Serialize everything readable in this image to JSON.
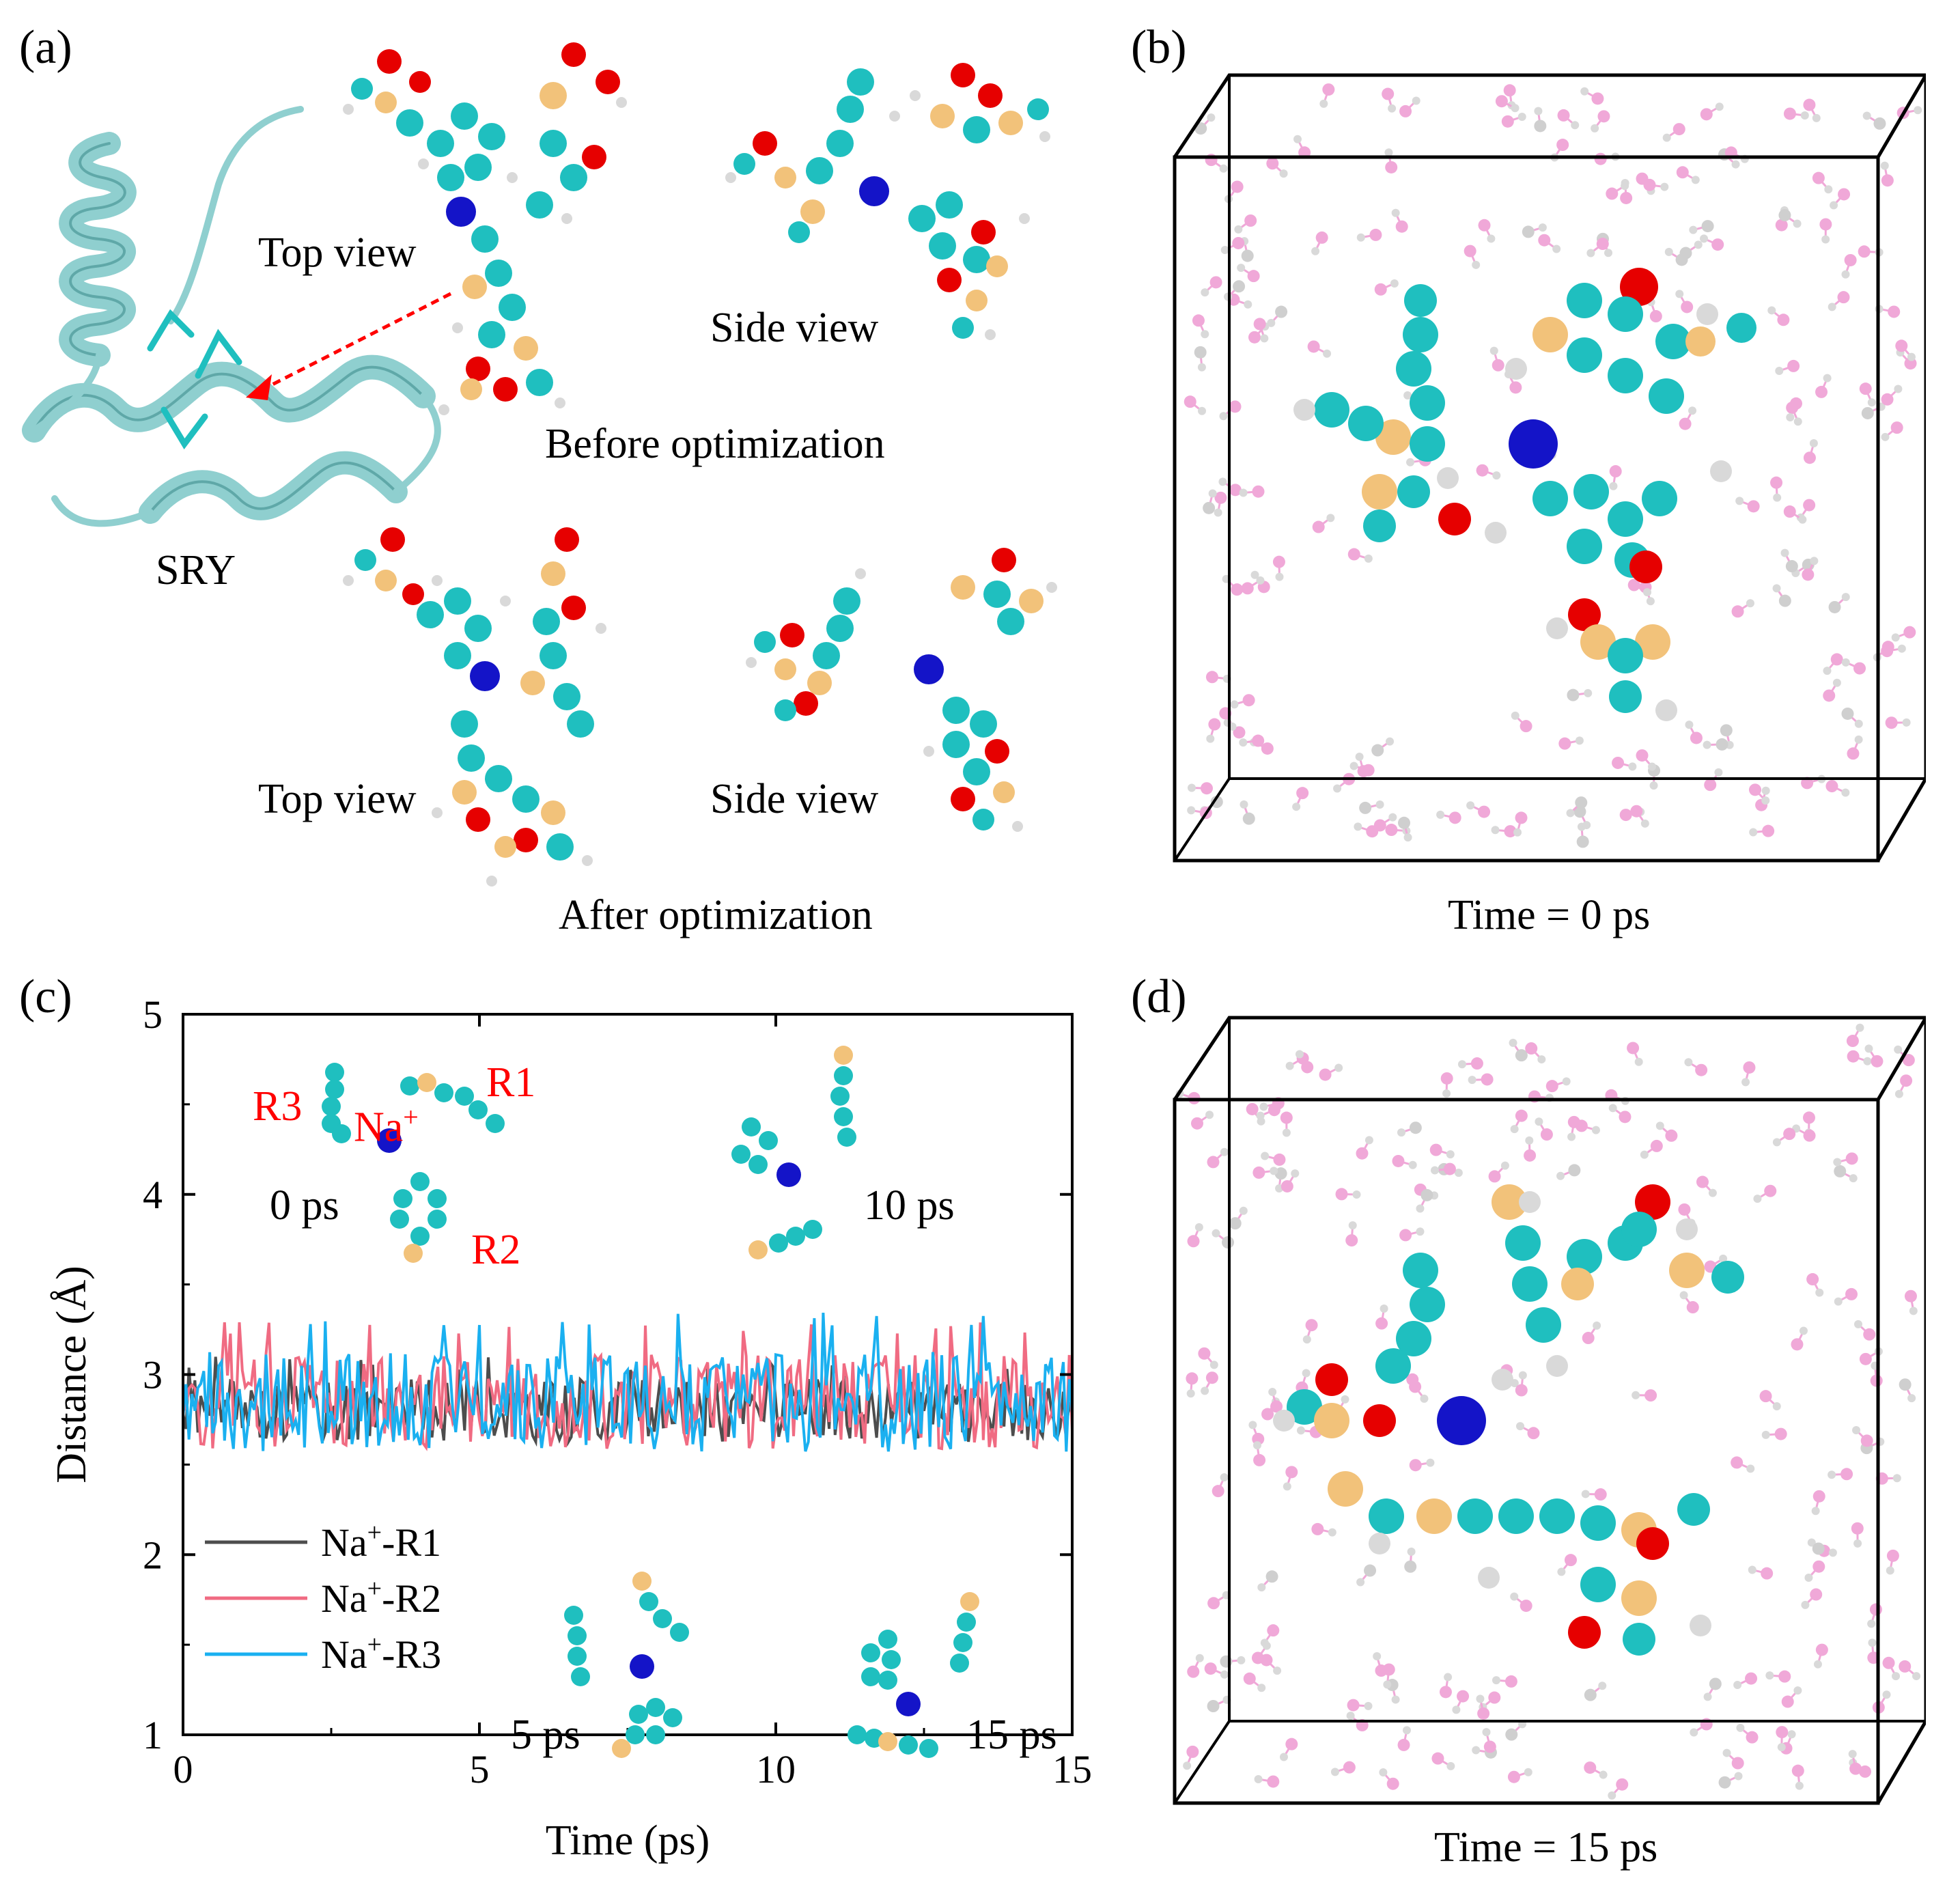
{
  "panels": {
    "a": {
      "label": "(a)",
      "protein_label": "SRY",
      "top_view_1": "Top view",
      "side_view_1": "Side view",
      "caption_before": "Before optimization",
      "top_view_2": "Top view",
      "side_view_2": "Side view",
      "caption_after": "After optimization"
    },
    "b": {
      "label": "(b)",
      "caption": "Time = 0 ps"
    },
    "c": {
      "label": "(c)",
      "inset_labels": {
        "r1": "R1",
        "r2": "R2",
        "r3": "R3",
        "na": "Na",
        "na_sup": "+"
      },
      "time_labels": {
        "t0": "0 ps",
        "t5": "5 ps",
        "t10": "10 ps",
        "t15": "15 ps"
      }
    },
    "d": {
      "label": "(d)",
      "caption": "Time = 15 ps"
    }
  },
  "colors": {
    "carbon": "#1fbfbf",
    "oxygen": "#e60000",
    "hydrogen": "#d9d9d9",
    "sulfur": "#f2c27a",
    "sodium": "#1414c8",
    "water_o": "#f0a8d8",
    "protein": "#8fcfcf",
    "arrow": "#ff0000",
    "series_r1": "#4d4d4d",
    "series_r2": "#f06b82",
    "series_r3": "#1ab0f0"
  },
  "chart_data": {
    "type": "line",
    "xlabel": "Time (ps)",
    "ylabel": "Distance (Å)",
    "xlim": [
      0,
      15
    ],
    "ylim": [
      1,
      5
    ],
    "xticks": [
      "0",
      "5",
      "10",
      "15"
    ],
    "yticks": [
      "1",
      "2",
      "3",
      "4",
      "5"
    ],
    "legend_position": "bottom-left",
    "series": [
      {
        "name": "Na⁺-R1",
        "label_base": "Na",
        "label_sup": "+",
        "label_tail": "-R1",
        "mean": 2.8,
        "min": 2.6,
        "max": 3.1
      },
      {
        "name": "Na⁺-R2",
        "label_base": "Na",
        "label_sup": "+",
        "label_tail": "-R2",
        "mean": 2.85,
        "min": 2.55,
        "max": 3.3
      },
      {
        "name": "Na⁺-R3",
        "label_base": "Na",
        "label_sup": "+",
        "label_tail": "-R3",
        "mean": 2.85,
        "min": 2.55,
        "max": 3.35
      }
    ]
  }
}
